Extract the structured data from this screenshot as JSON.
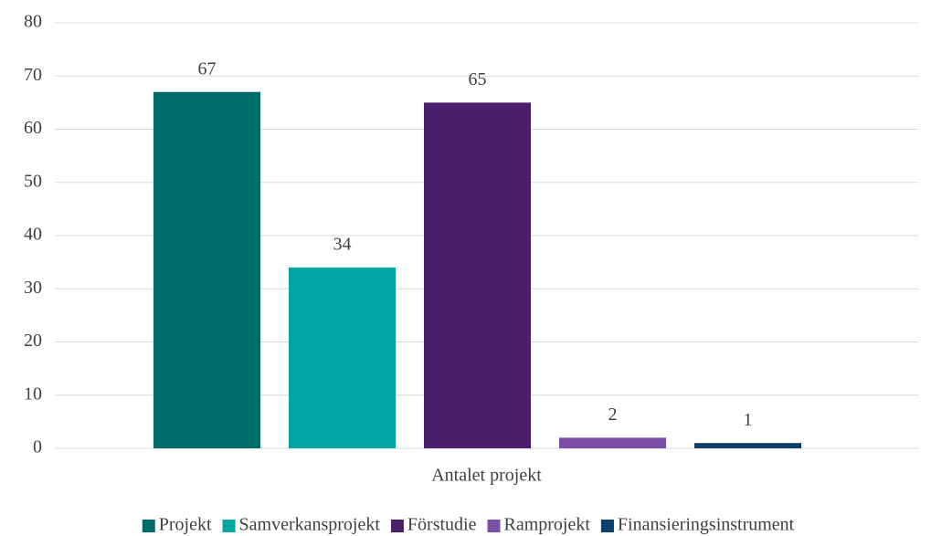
{
  "chart_data": {
    "type": "bar",
    "categories": [
      "Antalet projekt"
    ],
    "series": [
      {
        "name": "Projekt",
        "color": "#006b6b",
        "values": [
          67
        ]
      },
      {
        "name": "Samverkansprojekt",
        "color": "#00a6a6",
        "values": [
          34
        ]
      },
      {
        "name": "Förstudie",
        "color": "#4b1f6b",
        "values": [
          65
        ]
      },
      {
        "name": "Ramprojekt",
        "color": "#7b4fa6",
        "values": [
          2
        ]
      },
      {
        "name": "Finansieringsinstrument",
        "color": "#0e3f6b",
        "values": [
          1
        ]
      }
    ],
    "ylim": [
      0,
      80
    ],
    "yticks": [
      0,
      10,
      20,
      30,
      40,
      50,
      60,
      70,
      80
    ],
    "grid": true,
    "legend": "bottom"
  }
}
